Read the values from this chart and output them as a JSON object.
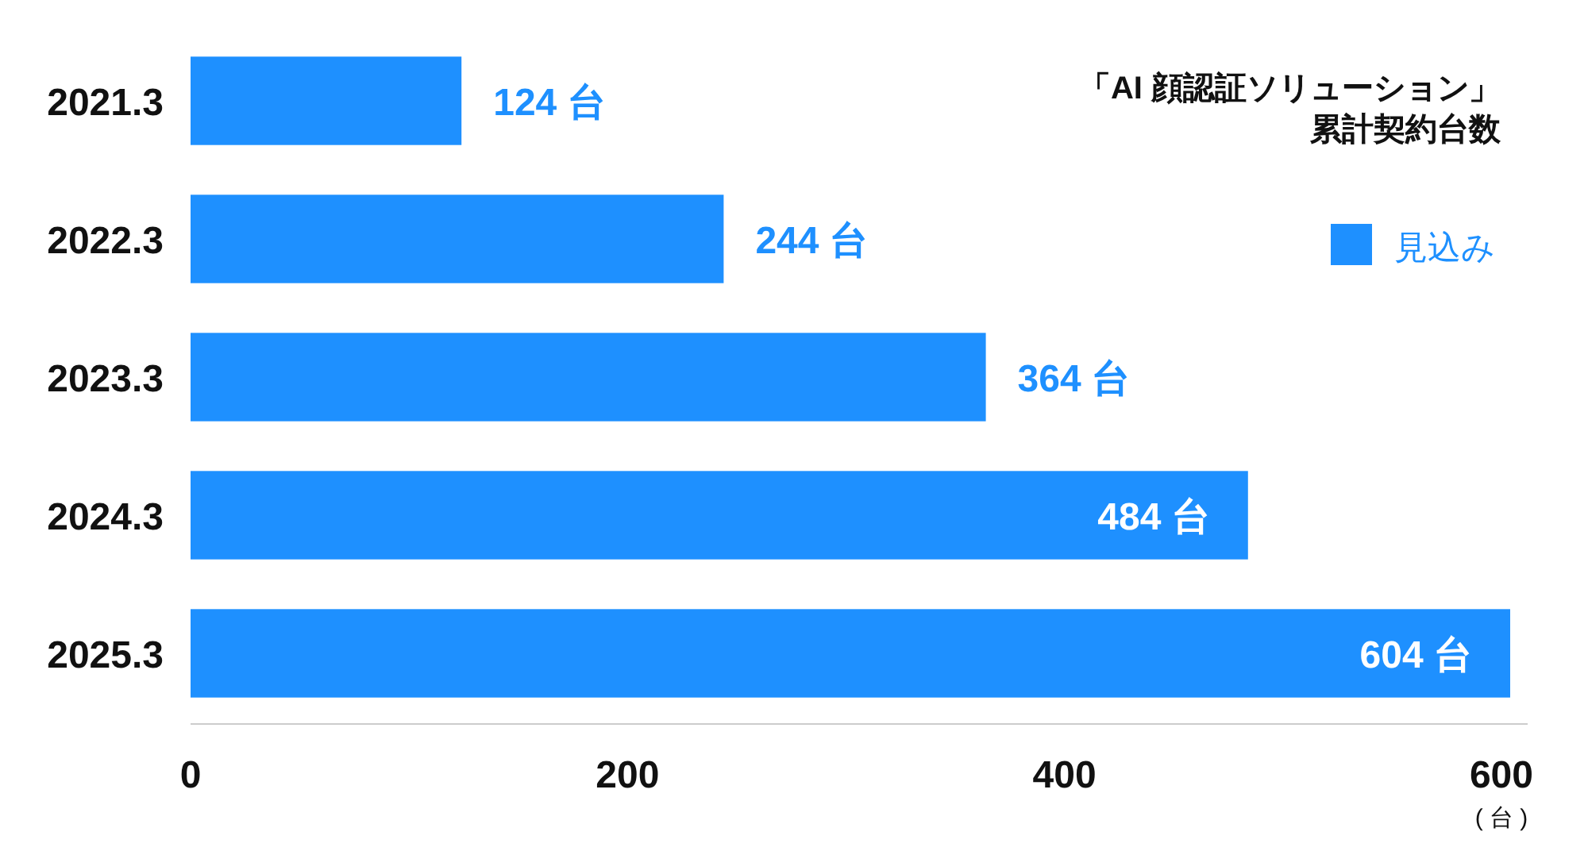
{
  "chart_data": {
    "type": "bar",
    "orientation": "horizontal",
    "title": "「AI 顔認証ソリューション」",
    "subtitle": "累計契約台数",
    "xlabel": "( 台 )",
    "categories": [
      "2021.3",
      "2022.3",
      "2023.3",
      "2024.3",
      "2025.3"
    ],
    "series": [
      {
        "name": "見込み",
        "color": "#1e90ff",
        "values": [
          124,
          244,
          364,
          484,
          604
        ],
        "value_labels": [
          "124 台",
          "244 台",
          "364 台",
          "484 台",
          "604 台"
        ]
      }
    ],
    "xlim": [
      0,
      612
    ],
    "xticks": [
      0,
      200,
      400,
      600
    ],
    "legend": "top right",
    "grid": false
  }
}
